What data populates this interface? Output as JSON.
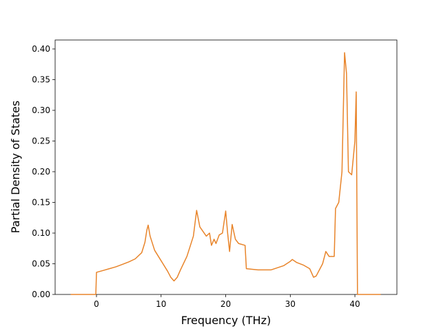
{
  "chart_data": {
    "type": "line",
    "x_label": "Frequency (THz)",
    "y_label": "Partial Density of States",
    "xlim": [
      -6.4,
      46.5
    ],
    "ylim": [
      0,
      0.4146
    ],
    "xticks": [
      0,
      10,
      20,
      30,
      40
    ],
    "yticks": [
      {
        "value": 0,
        "label": "0.00"
      },
      {
        "value": 0.05,
        "label": "0.05"
      },
      {
        "value": 0.1,
        "label": "0.10"
      },
      {
        "value": 0.15,
        "label": "0.15"
      },
      {
        "value": 0.2,
        "label": "0.20"
      },
      {
        "value": 0.25,
        "label": "0.25"
      },
      {
        "value": 0.3,
        "label": "0.30"
      },
      {
        "value": 0.35,
        "label": "0.35"
      },
      {
        "value": 0.4,
        "label": "0.40"
      }
    ],
    "x": [
      -4,
      -0.1,
      0,
      1,
      2,
      3,
      4,
      5,
      6,
      7,
      7.5,
      7.8,
      8,
      8.3,
      9,
      10,
      11,
      11.5,
      12,
      12.5,
      13,
      14,
      15,
      15.5,
      16,
      17,
      17.5,
      17.8,
      18.2,
      18.5,
      19,
      19.5,
      20,
      20.3,
      20.6,
      21,
      21.5,
      22,
      23,
      23.2,
      25,
      27,
      29,
      30,
      30.3,
      31,
      32,
      33,
      33.6,
      34,
      35,
      35.5,
      36,
      36.8,
      37,
      37.5,
      38,
      38.4,
      38.7,
      39,
      39.5,
      40,
      40.2,
      40.4,
      44
    ],
    "series": [
      {
        "color": "#e8842a",
        "values": [
          0,
          0,
          0.036,
          0.039,
          0.042,
          0.045,
          0.049,
          0.053,
          0.058,
          0.068,
          0.085,
          0.105,
          0.113,
          0.095,
          0.072,
          0.055,
          0.038,
          0.028,
          0.022,
          0.028,
          0.04,
          0.062,
          0.095,
          0.137,
          0.11,
          0.095,
          0.1,
          0.08,
          0.09,
          0.083,
          0.097,
          0.1,
          0.136,
          0.1,
          0.07,
          0.114,
          0.09,
          0.083,
          0.08,
          0.042,
          0.04,
          0.04,
          0.047,
          0.054,
          0.057,
          0.052,
          0.048,
          0.042,
          0.028,
          0.03,
          0.05,
          0.07,
          0.062,
          0.062,
          0.14,
          0.15,
          0.2,
          0.394,
          0.36,
          0.2,
          0.195,
          0.25,
          0.33,
          0,
          0
        ]
      }
    ]
  }
}
